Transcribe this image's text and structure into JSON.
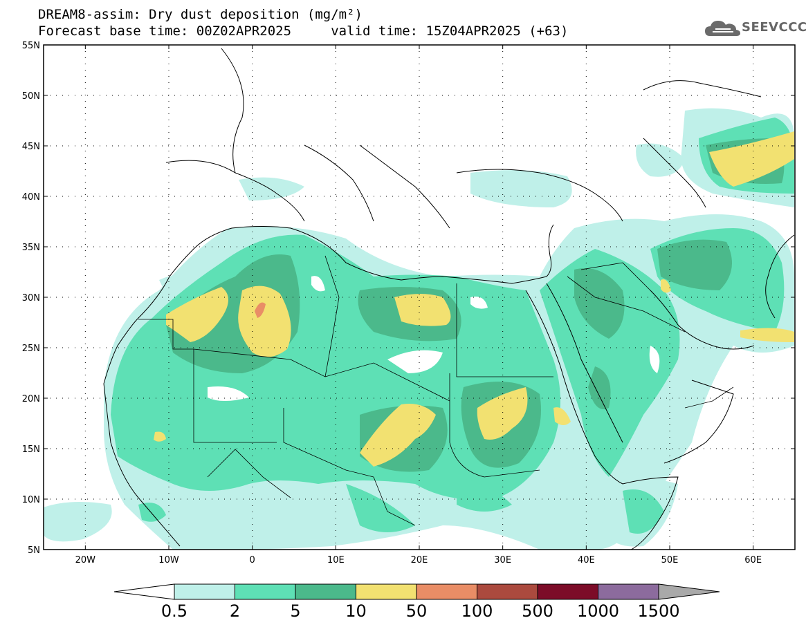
{
  "title": {
    "line1": "DREAM8-assim: Dry dust deposition (mg/m²)",
    "line2": "Forecast base time: 00Z02APR2025     valid time: 15Z04APR2025 (+63)"
  },
  "logo": {
    "text": "SEEVCCC",
    "icon": "cloud-icon"
  },
  "map": {
    "lon_range": [
      -25,
      65
    ],
    "lat_range": [
      5,
      55
    ],
    "lon_ticks": [
      {
        "v": -20,
        "label": "20W"
      },
      {
        "v": -10,
        "label": "10W"
      },
      {
        "v": 0,
        "label": "0"
      },
      {
        "v": 10,
        "label": "10E"
      },
      {
        "v": 20,
        "label": "20E"
      },
      {
        "v": 30,
        "label": "30E"
      },
      {
        "v": 40,
        "label": "40E"
      },
      {
        "v": 50,
        "label": "50E"
      },
      {
        "v": 60,
        "label": "60E"
      }
    ],
    "lat_ticks": [
      {
        "v": 5,
        "label": "5N"
      },
      {
        "v": 10,
        "label": "10N"
      },
      {
        "v": 15,
        "label": "15N"
      },
      {
        "v": 20,
        "label": "20N"
      },
      {
        "v": 25,
        "label": "25N"
      },
      {
        "v": 30,
        "label": "30N"
      },
      {
        "v": 35,
        "label": "35N"
      },
      {
        "v": 40,
        "label": "40N"
      },
      {
        "v": 45,
        "label": "45N"
      },
      {
        "v": 50,
        "label": "50N"
      },
      {
        "v": 55,
        "label": "55N"
      }
    ]
  },
  "colorbar": {
    "levels": [
      {
        "label": "0.5",
        "color": "#bff0e9"
      },
      {
        "label": "2",
        "color": "#5ee0b5"
      },
      {
        "label": "5",
        "color": "#4bb98b"
      },
      {
        "label": "10",
        "color": "#f2e171"
      },
      {
        "label": "50",
        "color": "#e98d66"
      },
      {
        "label": "100",
        "color": "#ab4a3e"
      },
      {
        "label": "500",
        "color": "#7c0c28"
      },
      {
        "label": "1000",
        "color": "#8c6b9d"
      },
      {
        "label": "1500",
        "color": "#a9a9a9"
      }
    ],
    "under_color": "#ffffff",
    "over_color": "#a9a9a9"
  }
}
